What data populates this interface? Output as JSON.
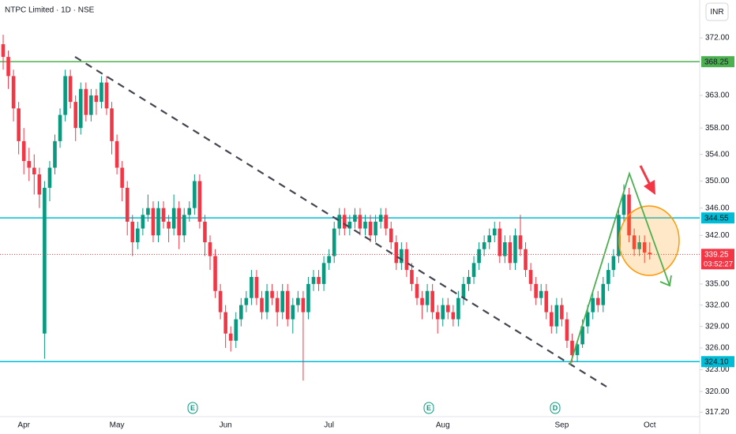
{
  "chart_data": {
    "type": "candlestick",
    "title": "NTPC Limited · 1D · NSE",
    "currency": "INR",
    "log": true,
    "grid": false,
    "up_color": "#089981",
    "down_color": "#f23645",
    "categories": [
      null,
      null,
      null,
      null,
      "Apr",
      null,
      null,
      null,
      null,
      null,
      null,
      null,
      null,
      null,
      null,
      null,
      null,
      null,
      null,
      null,
      null,
      null,
      "May",
      null,
      null,
      null,
      null,
      null,
      null,
      null,
      null,
      null,
      null,
      null,
      null,
      null,
      null,
      null,
      null,
      null,
      null,
      null,
      null,
      "Jun",
      null,
      null,
      null,
      null,
      null,
      null,
      null,
      null,
      null,
      null,
      null,
      null,
      null,
      null,
      null,
      null,
      null,
      null,
      null,
      "Jul",
      null,
      null,
      null,
      null,
      null,
      null,
      null,
      null,
      null,
      null,
      null,
      null,
      null,
      null,
      null,
      null,
      null,
      null,
      null,
      null,
      null,
      "Aug",
      null,
      null,
      null,
      null,
      null,
      null,
      null,
      null,
      null,
      null,
      null,
      null,
      null,
      null,
      null,
      null,
      null,
      null,
      null,
      null,
      null,
      null,
      "Sep",
      null,
      null,
      null,
      null,
      null,
      null,
      null,
      null,
      null,
      null,
      null,
      null,
      null,
      null,
      null,
      null,
      "Oct"
    ],
    "open": [
      371,
      369,
      366,
      361,
      356,
      353,
      352,
      351,
      328,
      349,
      352,
      356,
      360,
      366,
      362,
      358,
      364,
      360,
      363,
      362,
      365,
      361,
      356,
      352,
      349,
      344,
      341,
      343,
      345,
      346,
      342,
      346,
      344,
      343,
      346,
      342,
      345,
      346,
      350,
      344,
      341,
      339,
      334,
      331,
      328,
      327,
      330,
      332,
      333,
      336,
      333,
      331,
      334,
      333,
      331,
      334,
      330,
      332,
      333,
      331,
      335,
      336,
      335,
      338,
      339,
      343,
      345,
      343,
      344,
      345,
      343,
      344,
      342,
      344,
      345,
      343,
      341,
      338,
      340,
      337,
      335,
      333,
      332,
      334,
      331,
      330,
      332,
      331,
      330,
      333,
      335,
      336,
      338,
      340,
      341,
      342,
      343,
      339,
      341,
      338,
      342,
      340,
      337,
      335,
      333,
      334,
      331,
      329,
      332,
      330,
      327,
      325,
      326.5,
      329,
      331,
      333,
      332,
      335,
      337,
      339,
      345,
      348,
      342,
      340,
      341,
      339.5
    ],
    "high": [
      372.5,
      370,
      367,
      362,
      358,
      355,
      354,
      352,
      350,
      353,
      357,
      361,
      367,
      367,
      363,
      365,
      365,
      364,
      364,
      366,
      366,
      362,
      357,
      353,
      350,
      345,
      344,
      346,
      348,
      347,
      347,
      347,
      345,
      348,
      347,
      346,
      347,
      351,
      351,
      345,
      342,
      340,
      335,
      332,
      329,
      331,
      333,
      334,
      337,
      337,
      334,
      335,
      335,
      334,
      335,
      335,
      333,
      334,
      334,
      336,
      337,
      337,
      339,
      340,
      344,
      346,
      346,
      345,
      346,
      346,
      345,
      345,
      345,
      346,
      346,
      344,
      342,
      341,
      341,
      338,
      336,
      334,
      335,
      335,
      332,
      333,
      333,
      332,
      334,
      336,
      337,
      339,
      341,
      342,
      343,
      344,
      344,
      342,
      342,
      343,
      345,
      341,
      338,
      336,
      335,
      335,
      332,
      333,
      333,
      331,
      328,
      327,
      330,
      332,
      334,
      334,
      336,
      338,
      340,
      346,
      349.5,
      349,
      343,
      342,
      342,
      341
    ],
    "low": [
      367,
      364,
      359,
      354,
      351,
      350,
      348,
      346,
      324.5,
      347,
      351,
      355,
      359,
      361,
      356,
      357,
      359,
      359,
      360,
      361,
      360,
      354,
      351,
      347,
      342,
      339,
      340,
      342,
      344,
      341,
      341,
      343,
      341,
      342,
      340,
      341,
      344,
      345,
      343,
      339,
      337,
      333,
      330,
      326,
      325.5,
      326,
      329,
      331,
      332,
      332,
      330,
      330,
      332,
      329,
      330,
      329,
      328,
      331,
      321.5,
      330,
      334,
      334,
      334,
      337,
      338,
      342,
      342,
      342,
      343,
      342,
      342,
      341,
      341,
      343,
      342,
      340,
      337,
      337,
      336,
      334,
      332,
      330,
      331,
      330,
      328,
      329,
      330,
      329,
      329,
      332,
      334,
      335,
      337,
      339,
      340,
      341,
      338,
      338,
      337,
      337,
      339,
      336,
      334,
      332,
      332,
      330,
      328,
      328,
      329,
      326,
      324,
      324.1,
      326,
      328,
      330,
      331,
      331,
      334,
      336,
      338,
      344,
      341,
      339,
      339,
      338,
      338.5
    ],
    "close": [
      369,
      366,
      361,
      356,
      353,
      352,
      351,
      348,
      349,
      352,
      356,
      360,
      366,
      362,
      358,
      364,
      360,
      363,
      362,
      365,
      361,
      356,
      352,
      349,
      344,
      341,
      343,
      345,
      346,
      342,
      346,
      344,
      343,
      346,
      342,
      345,
      346,
      350,
      344,
      341,
      339,
      334,
      331,
      328,
      327,
      330,
      332,
      333,
      336,
      333,
      331,
      334,
      333,
      331,
      334,
      330,
      332,
      333,
      331,
      335,
      336,
      335,
      338,
      339,
      343,
      345,
      343,
      344,
      345,
      343,
      344,
      342,
      344,
      345,
      343,
      341,
      338,
      340,
      337,
      335,
      333,
      332,
      334,
      331,
      330,
      332,
      331,
      330,
      333,
      335,
      336,
      338,
      340,
      341,
      342,
      343,
      339,
      341,
      338,
      342,
      340,
      337,
      335,
      333,
      334,
      331,
      329,
      332,
      330,
      327,
      325,
      326.5,
      329,
      331,
      333,
      332,
      335,
      337,
      339,
      345,
      348,
      342,
      340,
      341,
      339.5,
      339.25
    ],
    "ylim": [
      316.6,
      378.05
    ],
    "yticks": [
      {
        "value": 372,
        "label": "372.00"
      },
      {
        "value": 363,
        "label": "363.00"
      },
      {
        "value": 358,
        "label": "358.00"
      },
      {
        "value": 354,
        "label": "354.00"
      },
      {
        "value": 350,
        "label": "350.00"
      },
      {
        "value": 346,
        "label": "346.00"
      },
      {
        "value": 342,
        "label": "342.00"
      },
      {
        "value": 335,
        "label": "335.00"
      },
      {
        "value": 332,
        "label": "332.00"
      },
      {
        "value": 329,
        "label": "329.00"
      },
      {
        "value": 326,
        "label": "326.00"
      },
      {
        "value": 323,
        "label": "323.00"
      },
      {
        "value": 320,
        "label": "320.00"
      },
      {
        "value": 317.2,
        "label": "317.20"
      }
    ],
    "levels": [
      {
        "value": 368.25,
        "color": "#4caf50"
      },
      {
        "value": 344.55,
        "color": "#00bcd4"
      },
      {
        "value": 324.1,
        "label": "324.10",
        "color": "#00bcd4"
      }
    ],
    "last_price": 339.25,
    "last_color": "#f23645",
    "countdown": "03:52:27",
    "events": [
      "E",
      "E",
      "D"
    ]
  }
}
